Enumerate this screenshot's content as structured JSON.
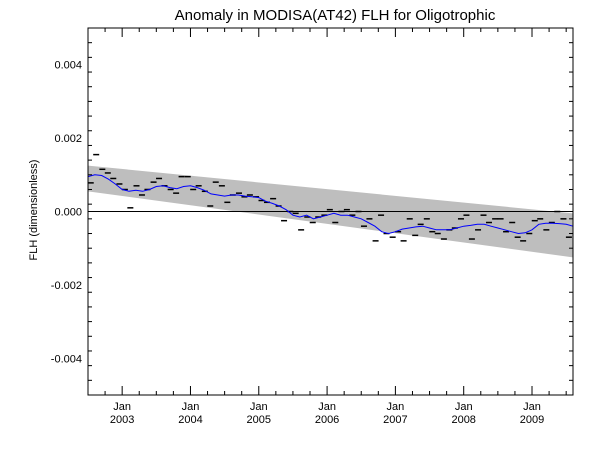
{
  "chart_data": {
    "type": "line",
    "title": "Anomaly in MODISA(AT42) FLH for Oligotrophic",
    "xlabel": "",
    "ylabel": "FLH (dimensionless)",
    "xlim": [
      2002.5,
      2009.6
    ],
    "ylim": [
      -0.005,
      0.005
    ],
    "y_ticks": [
      -0.004,
      -0.002,
      0.0,
      0.002,
      0.004
    ],
    "y_tick_labels": [
      "-0.004",
      "-0.002",
      "0.000",
      "0.002",
      "0.004"
    ],
    "x_ticks": [
      {
        "value": 2003.0,
        "month": "Jan",
        "year": "2003"
      },
      {
        "value": 2004.0,
        "month": "Jan",
        "year": "2004"
      },
      {
        "value": 2005.0,
        "month": "Jan",
        "year": "2005"
      },
      {
        "value": 2006.0,
        "month": "Jan",
        "year": "2006"
      },
      {
        "value": 2007.0,
        "month": "Jan",
        "year": "2007"
      },
      {
        "value": 2008.0,
        "month": "Jan",
        "year": "2008"
      },
      {
        "value": 2009.0,
        "month": "Jan",
        "year": "2009"
      }
    ],
    "zero_line": 0.0,
    "trend_band": {
      "start": [
        2002.5,
        0.00055,
        0.00125
      ],
      "end": [
        2009.6,
        -0.00125,
        -5e-05
      ]
    },
    "monthly_points": [
      [
        2002.54,
        0.00078
      ],
      [
        2002.62,
        0.00155
      ],
      [
        2002.71,
        0.00115
      ],
      [
        2002.79,
        0.00105
      ],
      [
        2002.87,
        0.0009
      ],
      [
        2002.96,
        0.00075
      ],
      [
        2003.04,
        0.0006
      ],
      [
        2003.12,
        0.0001
      ],
      [
        2003.21,
        0.0007
      ],
      [
        2003.29,
        0.00045
      ],
      [
        2003.37,
        0.0006
      ],
      [
        2003.46,
        0.0008
      ],
      [
        2003.54,
        0.0009
      ],
      [
        2003.62,
        0.0007
      ],
      [
        2003.71,
        0.0006
      ],
      [
        2003.79,
        0.0005
      ],
      [
        2003.87,
        0.00095
      ],
      [
        2003.96,
        0.00095
      ],
      [
        2004.04,
        0.0006
      ],
      [
        2004.12,
        0.0007
      ],
      [
        2004.21,
        0.00055
      ],
      [
        2004.29,
        0.00015
      ],
      [
        2004.37,
        0.0008
      ],
      [
        2004.46,
        0.0007
      ],
      [
        2004.54,
        0.00025
      ],
      [
        2004.62,
        0.00045
      ],
      [
        2004.71,
        0.0005
      ],
      [
        2004.79,
        0.0004
      ],
      [
        2004.87,
        0.00045
      ],
      [
        2004.96,
        0.0004
      ],
      [
        2005.04,
        0.0003
      ],
      [
        2005.12,
        0.00025
      ],
      [
        2005.21,
        0.00035
      ],
      [
        2005.29,
        0.00015
      ],
      [
        2005.37,
        -0.00025
      ],
      [
        2005.46,
        0.0
      ],
      [
        2005.54,
        -5e-05
      ],
      [
        2005.62,
        -0.0005
      ],
      [
        2005.71,
        -0.00015
      ],
      [
        2005.79,
        -0.0003
      ],
      [
        2005.87,
        -0.00015
      ],
      [
        2005.96,
        -0.0001
      ],
      [
        2006.04,
        5e-05
      ],
      [
        2006.12,
        -0.0003
      ],
      [
        2006.21,
        0.0
      ],
      [
        2006.29,
        5e-05
      ],
      [
        2006.37,
        -0.0001
      ],
      [
        2006.46,
        0.0
      ],
      [
        2006.54,
        -0.0004
      ],
      [
        2006.62,
        -0.0002
      ],
      [
        2006.71,
        -0.0008
      ],
      [
        2006.79,
        -0.0001
      ],
      [
        2006.87,
        -0.0006
      ],
      [
        2006.96,
        -0.0007
      ],
      [
        2007.04,
        -0.00055
      ],
      [
        2007.12,
        -0.0008
      ],
      [
        2007.21,
        -0.0002
      ],
      [
        2007.29,
        -0.00065
      ],
      [
        2007.37,
        -0.00035
      ],
      [
        2007.46,
        -0.0002
      ],
      [
        2007.54,
        -0.00055
      ],
      [
        2007.62,
        -0.0006
      ],
      [
        2007.71,
        -0.00075
      ],
      [
        2007.79,
        -0.0005
      ],
      [
        2007.87,
        -0.00045
      ],
      [
        2007.96,
        -0.0002
      ],
      [
        2008.04,
        -0.0001
      ],
      [
        2008.12,
        -0.00075
      ],
      [
        2008.21,
        -0.0005
      ],
      [
        2008.29,
        -0.0001
      ],
      [
        2008.37,
        -0.0003
      ],
      [
        2008.46,
        -0.0002
      ],
      [
        2008.54,
        -0.0002
      ],
      [
        2008.62,
        -0.00055
      ],
      [
        2008.71,
        -0.0003
      ],
      [
        2008.79,
        -0.0007
      ],
      [
        2008.87,
        -0.0008
      ],
      [
        2008.96,
        -0.0006
      ],
      [
        2009.04,
        -0.00025
      ],
      [
        2009.12,
        -0.0002
      ],
      [
        2009.21,
        -0.0005
      ],
      [
        2009.29,
        -0.0003
      ],
      [
        2009.37,
        0.0
      ],
      [
        2009.46,
        -0.0002
      ],
      [
        2009.54,
        -0.0007
      ]
    ],
    "smoothed_series": [
      [
        2002.5,
        0.00095
      ],
      [
        2002.6,
        0.001
      ],
      [
        2002.7,
        0.00098
      ],
      [
        2002.8,
        0.00088
      ],
      [
        2002.9,
        0.00075
      ],
      [
        2003.0,
        0.0006
      ],
      [
        2003.1,
        0.00055
      ],
      [
        2003.2,
        0.00058
      ],
      [
        2003.3,
        0.00055
      ],
      [
        2003.4,
        0.0006
      ],
      [
        2003.5,
        0.00068
      ],
      [
        2003.6,
        0.0007
      ],
      [
        2003.7,
        0.00065
      ],
      [
        2003.8,
        0.00062
      ],
      [
        2003.9,
        0.00068
      ],
      [
        2004.0,
        0.0007
      ],
      [
        2004.1,
        0.00065
      ],
      [
        2004.2,
        0.00058
      ],
      [
        2004.3,
        0.00048
      ],
      [
        2004.4,
        0.00045
      ],
      [
        2004.5,
        0.00042
      ],
      [
        2004.6,
        0.00045
      ],
      [
        2004.7,
        0.00045
      ],
      [
        2004.8,
        0.00042
      ],
      [
        2004.9,
        0.0004
      ],
      [
        2005.0,
        0.00038
      ],
      [
        2005.1,
        0.00028
      ],
      [
        2005.2,
        0.00022
      ],
      [
        2005.3,
        0.00015
      ],
      [
        2005.4,
        5e-05
      ],
      [
        2005.5,
        -0.0001
      ],
      [
        2005.6,
        -0.00015
      ],
      [
        2005.7,
        -0.0001
      ],
      [
        2005.8,
        -0.0002
      ],
      [
        2005.9,
        -0.00015
      ],
      [
        2006.0,
        -0.0001
      ],
      [
        2006.1,
        -5e-05
      ],
      [
        2006.2,
        -0.0001
      ],
      [
        2006.3,
        -0.0001
      ],
      [
        2006.4,
        -0.00015
      ],
      [
        2006.5,
        -0.0002
      ],
      [
        2006.6,
        -0.0003
      ],
      [
        2006.7,
        -0.0004
      ],
      [
        2006.8,
        -0.00055
      ],
      [
        2006.9,
        -0.0006
      ],
      [
        2007.0,
        -0.00055
      ],
      [
        2007.1,
        -0.00048
      ],
      [
        2007.2,
        -0.00045
      ],
      [
        2007.3,
        -0.00042
      ],
      [
        2007.4,
        -0.0004
      ],
      [
        2007.5,
        -0.00045
      ],
      [
        2007.6,
        -0.0005
      ],
      [
        2007.7,
        -0.0005
      ],
      [
        2007.8,
        -0.0005
      ],
      [
        2007.9,
        -0.00045
      ],
      [
        2008.0,
        -0.0004
      ],
      [
        2008.1,
        -0.00038
      ],
      [
        2008.2,
        -0.00035
      ],
      [
        2008.3,
        -0.00035
      ],
      [
        2008.4,
        -0.0004
      ],
      [
        2008.5,
        -0.00045
      ],
      [
        2008.6,
        -0.0005
      ],
      [
        2008.7,
        -0.00055
      ],
      [
        2008.8,
        -0.0006
      ],
      [
        2008.9,
        -0.00058
      ],
      [
        2009.0,
        -0.0005
      ],
      [
        2009.1,
        -0.00035
      ],
      [
        2009.2,
        -0.00032
      ],
      [
        2009.3,
        -0.00032
      ],
      [
        2009.4,
        -0.00033
      ],
      [
        2009.5,
        -0.00035
      ],
      [
        2009.6,
        -0.0004
      ]
    ],
    "colors": {
      "band": "#bebebe",
      "smoothed": "#0000ff",
      "points": "#000000",
      "zero_line": "#000000",
      "axes": "#000000"
    },
    "grid": false,
    "legend": "none"
  }
}
